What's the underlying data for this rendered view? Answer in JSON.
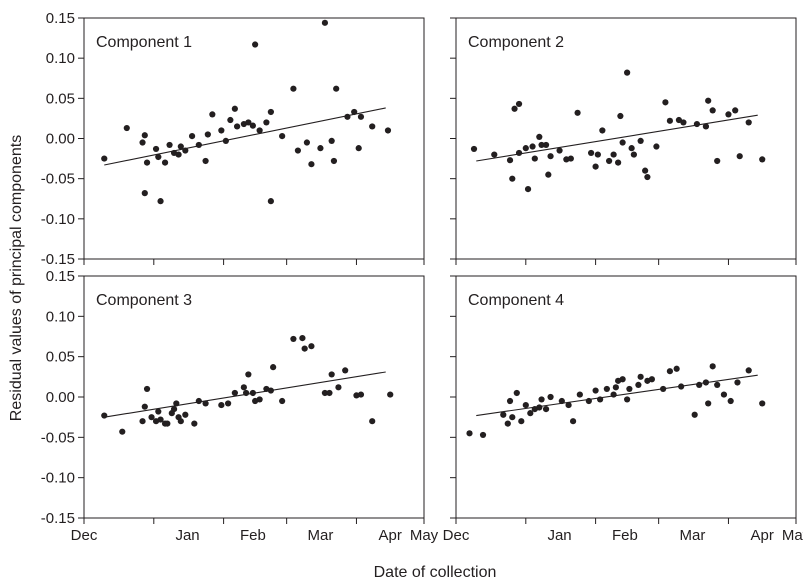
{
  "figure": {
    "ylabel": "Residual values of principal components",
    "xlabel": "Date of collection"
  },
  "chart_data": [
    {
      "type": "scatter",
      "title": "Component 1",
      "xlim": [
        "2008-12-01",
        "2009-05-01"
      ],
      "ylim": [
        -0.15,
        0.15
      ],
      "xticks": [
        "Dec",
        "Jan",
        "Feb",
        "Mar",
        "Apr",
        "May"
      ],
      "yticks": [
        "0.15",
        "0.10",
        "0.05",
        "0.00",
        "-0.05",
        "-0.10",
        "-0.15"
      ],
      "trend": {
        "x": [
          "2008-12-10",
          "2009-04-14"
        ],
        "y": [
          -0.033,
          0.038
        ]
      },
      "points": [
        {
          "x": "2008-12-10",
          "y": -0.025
        },
        {
          "x": "2008-12-20",
          "y": 0.013
        },
        {
          "x": "2008-12-27",
          "y": -0.005
        },
        {
          "x": "2008-12-28",
          "y": 0.004
        },
        {
          "x": "2008-12-29",
          "y": -0.03
        },
        {
          "x": "2008-12-28",
          "y": -0.068
        },
        {
          "x": "2009-01-02",
          "y": -0.013
        },
        {
          "x": "2009-01-03",
          "y": -0.023
        },
        {
          "x": "2009-01-04",
          "y": -0.078
        },
        {
          "x": "2009-01-06",
          "y": -0.03
        },
        {
          "x": "2009-01-08",
          "y": -0.008
        },
        {
          "x": "2009-01-10",
          "y": -0.018
        },
        {
          "x": "2009-01-12",
          "y": -0.02
        },
        {
          "x": "2009-01-13",
          "y": -0.01
        },
        {
          "x": "2009-01-15",
          "y": -0.015
        },
        {
          "x": "2009-01-18",
          "y": 0.003
        },
        {
          "x": "2009-01-21",
          "y": -0.008
        },
        {
          "x": "2009-01-24",
          "y": -0.028
        },
        {
          "x": "2009-01-25",
          "y": 0.005
        },
        {
          "x": "2009-01-27",
          "y": 0.03
        },
        {
          "x": "2009-01-31",
          "y": 0.01
        },
        {
          "x": "2009-02-02",
          "y": -0.003
        },
        {
          "x": "2009-02-04",
          "y": 0.023
        },
        {
          "x": "2009-02-06",
          "y": 0.037
        },
        {
          "x": "2009-02-07",
          "y": 0.015
        },
        {
          "x": "2009-02-10",
          "y": 0.018
        },
        {
          "x": "2009-02-12",
          "y": 0.02
        },
        {
          "x": "2009-02-14",
          "y": 0.016
        },
        {
          "x": "2009-02-15",
          "y": 0.117
        },
        {
          "x": "2009-02-17",
          "y": 0.01
        },
        {
          "x": "2009-02-20",
          "y": 0.02
        },
        {
          "x": "2009-02-22",
          "y": 0.033
        },
        {
          "x": "2009-02-22",
          "y": -0.078
        },
        {
          "x": "2009-02-27",
          "y": 0.003
        },
        {
          "x": "2009-03-04",
          "y": 0.062
        },
        {
          "x": "2009-03-06",
          "y": -0.015
        },
        {
          "x": "2009-03-10",
          "y": -0.005
        },
        {
          "x": "2009-03-12",
          "y": -0.032
        },
        {
          "x": "2009-03-16",
          "y": -0.012
        },
        {
          "x": "2009-03-18",
          "y": 0.144
        },
        {
          "x": "2009-03-21",
          "y": -0.003
        },
        {
          "x": "2009-03-22",
          "y": -0.028
        },
        {
          "x": "2009-03-23",
          "y": 0.062
        },
        {
          "x": "2009-03-28",
          "y": 0.027
        },
        {
          "x": "2009-03-31",
          "y": 0.033
        },
        {
          "x": "2009-04-02",
          "y": -0.012
        },
        {
          "x": "2009-04-03",
          "y": 0.027
        },
        {
          "x": "2009-04-08",
          "y": 0.015
        },
        {
          "x": "2009-04-15",
          "y": 0.01
        }
      ]
    },
    {
      "type": "scatter",
      "title": "Component 2",
      "xlim": [
        "2008-12-01",
        "2009-05-01"
      ],
      "ylim": [
        -0.15,
        0.15
      ],
      "xticks": [
        "Dec",
        "Jan",
        "Feb",
        "Mar",
        "Apr",
        "May"
      ],
      "yticks": [],
      "trend": {
        "x": [
          "2008-12-10",
          "2009-04-14"
        ],
        "y": [
          -0.028,
          0.029
        ]
      },
      "points": [
        {
          "x": "2008-12-09",
          "y": -0.013
        },
        {
          "x": "2008-12-18",
          "y": -0.02
        },
        {
          "x": "2008-12-25",
          "y": -0.027
        },
        {
          "x": "2008-12-26",
          "y": -0.05
        },
        {
          "x": "2008-12-27",
          "y": 0.037
        },
        {
          "x": "2008-12-29",
          "y": 0.043
        },
        {
          "x": "2008-12-29",
          "y": -0.018
        },
        {
          "x": "2009-01-01",
          "y": -0.012
        },
        {
          "x": "2009-01-02",
          "y": -0.063
        },
        {
          "x": "2009-01-04",
          "y": -0.01
        },
        {
          "x": "2009-01-05",
          "y": -0.025
        },
        {
          "x": "2009-01-07",
          "y": 0.002
        },
        {
          "x": "2009-01-08",
          "y": -0.008
        },
        {
          "x": "2009-01-10",
          "y": -0.008
        },
        {
          "x": "2009-01-11",
          "y": -0.045
        },
        {
          "x": "2009-01-12",
          "y": -0.022
        },
        {
          "x": "2009-01-16",
          "y": -0.015
        },
        {
          "x": "2009-01-19",
          "y": -0.026
        },
        {
          "x": "2009-01-21",
          "y": -0.025
        },
        {
          "x": "2009-01-24",
          "y": 0.032
        },
        {
          "x": "2009-01-30",
          "y": -0.018
        },
        {
          "x": "2009-02-01",
          "y": -0.035
        },
        {
          "x": "2009-02-02",
          "y": -0.02
        },
        {
          "x": "2009-02-04",
          "y": 0.01
        },
        {
          "x": "2009-02-07",
          "y": -0.028
        },
        {
          "x": "2009-02-09",
          "y": -0.02
        },
        {
          "x": "2009-02-11",
          "y": -0.03
        },
        {
          "x": "2009-02-12",
          "y": 0.028
        },
        {
          "x": "2009-02-13",
          "y": -0.005
        },
        {
          "x": "2009-02-15",
          "y": 0.082
        },
        {
          "x": "2009-02-17",
          "y": -0.012
        },
        {
          "x": "2009-02-18",
          "y": -0.02
        },
        {
          "x": "2009-02-21",
          "y": -0.003
        },
        {
          "x": "2009-02-23",
          "y": -0.04
        },
        {
          "x": "2009-02-24",
          "y": -0.048
        },
        {
          "x": "2009-02-28",
          "y": -0.01
        },
        {
          "x": "2009-03-04",
          "y": 0.045
        },
        {
          "x": "2009-03-06",
          "y": 0.022
        },
        {
          "x": "2009-03-10",
          "y": 0.023
        },
        {
          "x": "2009-03-12",
          "y": 0.02
        },
        {
          "x": "2009-03-18",
          "y": 0.018
        },
        {
          "x": "2009-03-22",
          "y": 0.015
        },
        {
          "x": "2009-03-23",
          "y": 0.047
        },
        {
          "x": "2009-03-25",
          "y": 0.035
        },
        {
          "x": "2009-03-27",
          "y": -0.028
        },
        {
          "x": "2009-04-01",
          "y": 0.03
        },
        {
          "x": "2009-04-04",
          "y": 0.035
        },
        {
          "x": "2009-04-06",
          "y": -0.022
        },
        {
          "x": "2009-04-10",
          "y": 0.02
        },
        {
          "x": "2009-04-16",
          "y": -0.026
        }
      ]
    },
    {
      "type": "scatter",
      "title": "Component 3",
      "xlim": [
        "2008-12-01",
        "2009-05-01"
      ],
      "ylim": [
        -0.15,
        0.15
      ],
      "xticks": [
        "Dec",
        "Jan",
        "Feb",
        "Mar",
        "Apr",
        "May"
      ],
      "yticks": [
        "0.15",
        "0.10",
        "0.05",
        "0.00",
        "-0.05",
        "-0.10",
        "-0.15"
      ],
      "xtick_labels": [
        "Dec",
        "Jan",
        "Feb",
        "Mar",
        "Apr",
        "May"
      ],
      "trend": {
        "x": [
          "2008-12-10",
          "2009-04-14"
        ],
        "y": [
          -0.025,
          0.031
        ]
      },
      "points": [
        {
          "x": "2008-12-10",
          "y": -0.023
        },
        {
          "x": "2008-12-18",
          "y": -0.043
        },
        {
          "x": "2008-12-27",
          "y": -0.03
        },
        {
          "x": "2008-12-28",
          "y": -0.012
        },
        {
          "x": "2008-12-29",
          "y": 0.01
        },
        {
          "x": "2008-12-31",
          "y": -0.025
        },
        {
          "x": "2009-01-02",
          "y": -0.03
        },
        {
          "x": "2009-01-03",
          "y": -0.018
        },
        {
          "x": "2009-01-04",
          "y": -0.028
        },
        {
          "x": "2009-01-06",
          "y": -0.033
        },
        {
          "x": "2009-01-07",
          "y": -0.033
        },
        {
          "x": "2009-01-09",
          "y": -0.02
        },
        {
          "x": "2009-01-10",
          "y": -0.015
        },
        {
          "x": "2009-01-11",
          "y": -0.008
        },
        {
          "x": "2009-01-12",
          "y": -0.025
        },
        {
          "x": "2009-01-13",
          "y": -0.03
        },
        {
          "x": "2009-01-15",
          "y": -0.022
        },
        {
          "x": "2009-01-19",
          "y": -0.033
        },
        {
          "x": "2009-01-21",
          "y": -0.005
        },
        {
          "x": "2009-01-24",
          "y": -0.008
        },
        {
          "x": "2009-01-31",
          "y": -0.01
        },
        {
          "x": "2009-02-03",
          "y": -0.008
        },
        {
          "x": "2009-02-06",
          "y": 0.005
        },
        {
          "x": "2009-02-10",
          "y": 0.012
        },
        {
          "x": "2009-02-11",
          "y": 0.005
        },
        {
          "x": "2009-02-12",
          "y": 0.028
        },
        {
          "x": "2009-02-14",
          "y": 0.005
        },
        {
          "x": "2009-02-15",
          "y": -0.005
        },
        {
          "x": "2009-02-17",
          "y": -0.003
        },
        {
          "x": "2009-02-20",
          "y": 0.01
        },
        {
          "x": "2009-02-22",
          "y": 0.008
        },
        {
          "x": "2009-02-23",
          "y": 0.037
        },
        {
          "x": "2009-02-27",
          "y": -0.005
        },
        {
          "x": "2009-03-04",
          "y": 0.072
        },
        {
          "x": "2009-03-08",
          "y": 0.073
        },
        {
          "x": "2009-03-09",
          "y": 0.06
        },
        {
          "x": "2009-03-12",
          "y": 0.063
        },
        {
          "x": "2009-03-18",
          "y": 0.005
        },
        {
          "x": "2009-03-20",
          "y": 0.005
        },
        {
          "x": "2009-03-21",
          "y": 0.028
        },
        {
          "x": "2009-03-24",
          "y": 0.012
        },
        {
          "x": "2009-03-27",
          "y": 0.033
        },
        {
          "x": "2009-04-01",
          "y": 0.002
        },
        {
          "x": "2009-04-03",
          "y": 0.003
        },
        {
          "x": "2009-04-08",
          "y": -0.03
        },
        {
          "x": "2009-04-16",
          "y": 0.003
        }
      ]
    },
    {
      "type": "scatter",
      "title": "Component 4",
      "xlim": [
        "2008-12-01",
        "2009-05-01"
      ],
      "ylim": [
        -0.15,
        0.15
      ],
      "xticks": [
        "Dec",
        "Jan",
        "Feb",
        "Mar",
        "Apr",
        "May"
      ],
      "yticks": [],
      "xtick_labels": [
        "Dec",
        "Jan",
        "Feb",
        "Mar",
        "Apr",
        "May"
      ],
      "trend": {
        "x": [
          "2008-12-10",
          "2009-04-14"
        ],
        "y": [
          -0.023,
          0.027
        ]
      },
      "points": [
        {
          "x": "2008-12-07",
          "y": -0.045
        },
        {
          "x": "2008-12-13",
          "y": -0.047
        },
        {
          "x": "2008-12-22",
          "y": -0.022
        },
        {
          "x": "2008-12-24",
          "y": -0.033
        },
        {
          "x": "2008-12-25",
          "y": -0.005
        },
        {
          "x": "2008-12-26",
          "y": -0.025
        },
        {
          "x": "2008-12-28",
          "y": 0.005
        },
        {
          "x": "2008-12-30",
          "y": -0.03
        },
        {
          "x": "2009-01-01",
          "y": -0.01
        },
        {
          "x": "2009-01-03",
          "y": -0.02
        },
        {
          "x": "2009-01-05",
          "y": -0.015
        },
        {
          "x": "2009-01-07",
          "y": -0.013
        },
        {
          "x": "2009-01-08",
          "y": -0.003
        },
        {
          "x": "2009-01-10",
          "y": -0.015
        },
        {
          "x": "2009-01-12",
          "y": 0.0
        },
        {
          "x": "2009-01-17",
          "y": -0.005
        },
        {
          "x": "2009-01-20",
          "y": -0.01
        },
        {
          "x": "2009-01-22",
          "y": -0.03
        },
        {
          "x": "2009-01-25",
          "y": 0.003
        },
        {
          "x": "2009-01-29",
          "y": -0.005
        },
        {
          "x": "2009-02-01",
          "y": 0.008
        },
        {
          "x": "2009-02-03",
          "y": -0.003
        },
        {
          "x": "2009-02-06",
          "y": 0.01
        },
        {
          "x": "2009-02-09",
          "y": 0.003
        },
        {
          "x": "2009-02-10",
          "y": 0.012
        },
        {
          "x": "2009-02-11",
          "y": 0.02
        },
        {
          "x": "2009-02-13",
          "y": 0.022
        },
        {
          "x": "2009-02-15",
          "y": -0.003
        },
        {
          "x": "2009-02-16",
          "y": 0.01
        },
        {
          "x": "2009-02-20",
          "y": 0.015
        },
        {
          "x": "2009-02-21",
          "y": 0.025
        },
        {
          "x": "2009-02-24",
          "y": 0.02
        },
        {
          "x": "2009-02-26",
          "y": 0.022
        },
        {
          "x": "2009-03-03",
          "y": 0.01
        },
        {
          "x": "2009-03-06",
          "y": 0.032
        },
        {
          "x": "2009-03-09",
          "y": 0.035
        },
        {
          "x": "2009-03-11",
          "y": 0.013
        },
        {
          "x": "2009-03-17",
          "y": -0.022
        },
        {
          "x": "2009-03-19",
          "y": 0.015
        },
        {
          "x": "2009-03-22",
          "y": 0.018
        },
        {
          "x": "2009-03-23",
          "y": -0.008
        },
        {
          "x": "2009-03-25",
          "y": 0.038
        },
        {
          "x": "2009-03-27",
          "y": 0.015
        },
        {
          "x": "2009-03-30",
          "y": 0.003
        },
        {
          "x": "2009-04-02",
          "y": -0.005
        },
        {
          "x": "2009-04-05",
          "y": 0.018
        },
        {
          "x": "2009-04-10",
          "y": 0.033
        },
        {
          "x": "2009-04-16",
          "y": -0.008
        }
      ]
    }
  ]
}
